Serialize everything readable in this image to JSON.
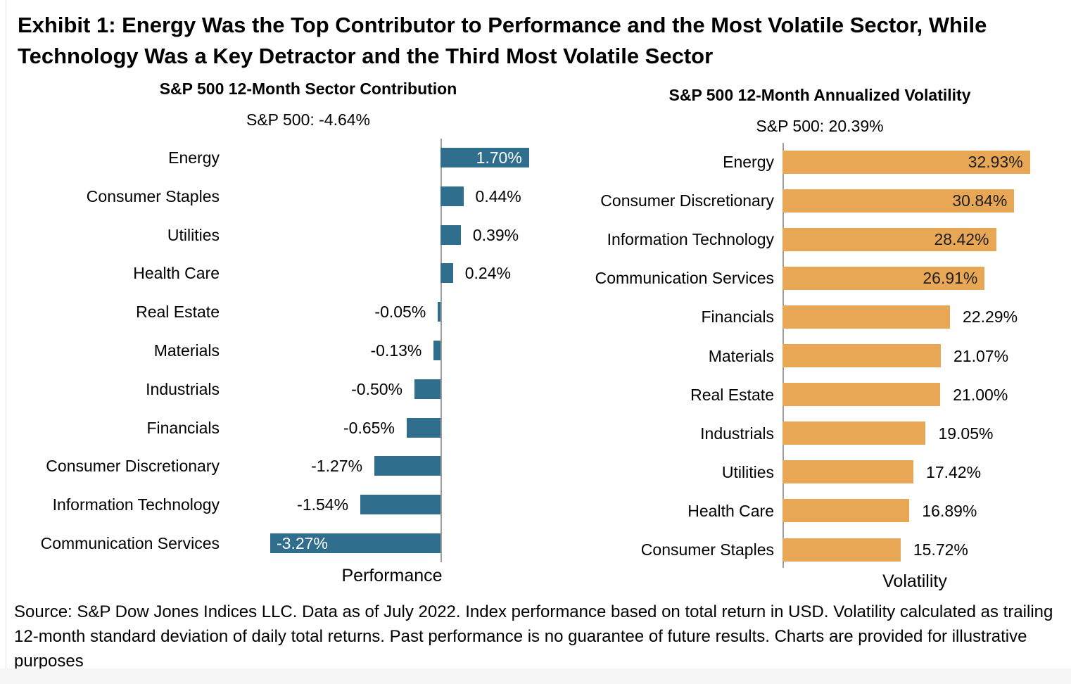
{
  "title": "Exhibit 1: Energy Was the Top Contributor to Performance and the Most Volatile Sector, While Technology Was a Key Detractor and the Third Most Volatile Sector",
  "source_note": "Source: S&P Dow Jones Indices LLC. Data as of July 2022. Index performance based on total return in USD. Volatility calculated as trailing 12-month standard deviation of daily total returns. Past performance is no guarantee of future results. Charts are provided for illustrative purposes",
  "colors": {
    "contribution_bar": "#2f6f8d",
    "volatility_bar": "#e8a755",
    "axis_line": "#9d9d9d",
    "text": "#000000",
    "inside_label_contribution": "#ffffff",
    "inside_label_volatility": "#1f1f1f"
  },
  "chart_data": [
    {
      "type": "bar",
      "orientation": "horizontal",
      "title": "S&P 500 12-Month Sector Contribution",
      "subtitle": "S&P 500: -4.64%",
      "xlabel": "Performance",
      "legend": "none",
      "grid": false,
      "xlim": [
        -3.5,
        1.9
      ],
      "categories": [
        "Energy",
        "Consumer Staples",
        "Utilities",
        "Health Care",
        "Real Estate",
        "Materials",
        "Industrials",
        "Financials",
        "Consumer Discretionary",
        "Information Technology",
        "Communication Services"
      ],
      "values": [
        1.7,
        0.44,
        0.39,
        0.24,
        -0.05,
        -0.13,
        -0.5,
        -0.65,
        -1.27,
        -1.54,
        -3.27
      ],
      "labels": [
        "1.70%",
        "0.44%",
        "0.39%",
        "0.24%",
        "-0.05%",
        "-0.13%",
        "-0.50%",
        "-0.65%",
        "-1.27%",
        "-1.54%",
        "-3.27%"
      ],
      "labels_inside": [
        true,
        false,
        false,
        false,
        false,
        false,
        false,
        false,
        false,
        false,
        true
      ],
      "bar_color": "#2f6f8d",
      "inside_label_color": "#ffffff"
    },
    {
      "type": "bar",
      "orientation": "horizontal",
      "title": "S&P 500 12-Month Annualized Volatility",
      "subtitle": "S&P 500: 20.39%",
      "xlabel": "Volatility",
      "legend": "none",
      "grid": false,
      "xlim": [
        0,
        36
      ],
      "categories": [
        "Energy",
        "Consumer Discretionary",
        "Information Technology",
        "Communication Services",
        "Financials",
        "Materials",
        "Real Estate",
        "Industrials",
        "Utilities",
        "Health Care",
        "Consumer Staples"
      ],
      "values": [
        32.93,
        30.84,
        28.42,
        26.91,
        22.29,
        21.07,
        21.0,
        19.05,
        17.42,
        16.89,
        15.72
      ],
      "labels": [
        "32.93%",
        "30.84%",
        "28.42%",
        "26.91%",
        "22.29%",
        "21.07%",
        "21.00%",
        "19.05%",
        "17.42%",
        "16.89%",
        "15.72%"
      ],
      "labels_inside": [
        true,
        true,
        true,
        true,
        false,
        false,
        false,
        false,
        false,
        false,
        false
      ],
      "bar_color": "#e8a755",
      "inside_label_color": "#1f1f1f"
    }
  ]
}
